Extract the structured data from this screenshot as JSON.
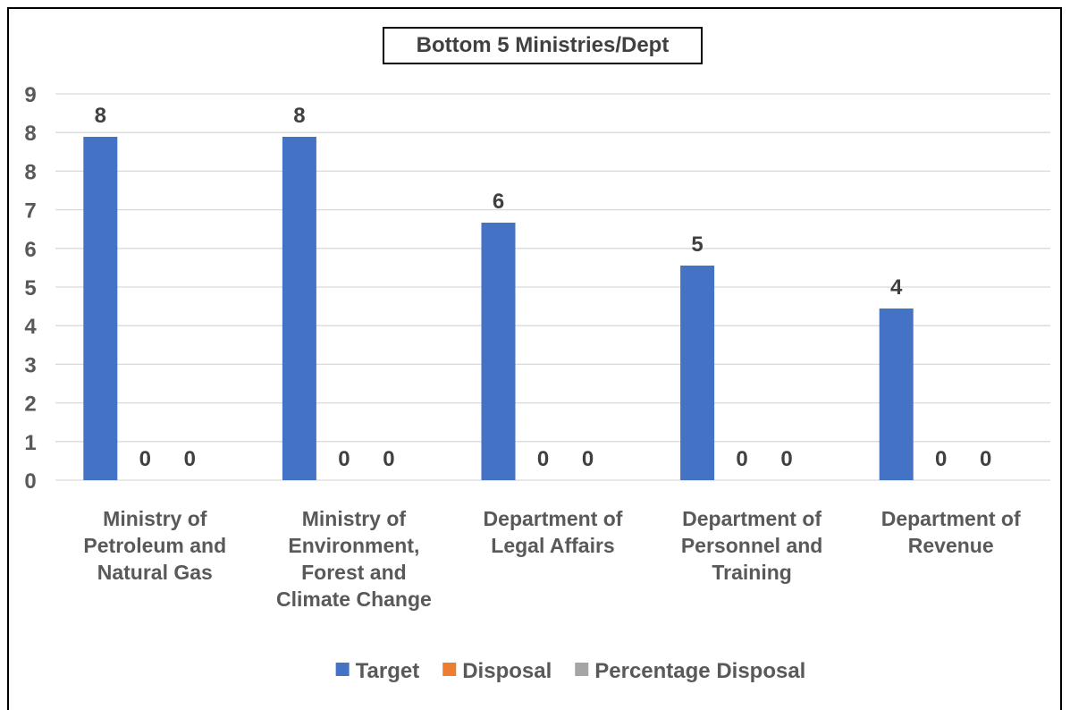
{
  "chart_data": {
    "type": "bar",
    "title": "Bottom 5 Ministries/Dept",
    "categories": [
      [
        "Ministry of",
        "Petroleum and",
        "Natural Gas"
      ],
      [
        "Ministry of",
        "Environment,",
        "Forest and",
        "Climate Change"
      ],
      [
        "Department of",
        "Legal Affairs"
      ],
      [
        "Department of",
        "Personnel and",
        "Training"
      ],
      [
        "Department of",
        "Revenue"
      ]
    ],
    "series": [
      {
        "name": "Target",
        "values": [
          8,
          8,
          6,
          5,
          4
        ],
        "color": "#4472C4"
      },
      {
        "name": "Disposal",
        "values": [
          0,
          0,
          0,
          0,
          0
        ],
        "color": "#ED7D31"
      },
      {
        "name": "Percentage Disposal",
        "values": [
          0,
          0,
          0,
          0,
          0
        ],
        "color": "#A5A5A5"
      }
    ],
    "yticks": [
      "0",
      "1",
      "2",
      "3",
      "4",
      "5",
      "6",
      "7",
      "8",
      "8",
      "9"
    ],
    "ylim": [
      0,
      9
    ],
    "grid": true,
    "legend_position": "bottom",
    "xlabel": "",
    "ylabel": ""
  }
}
